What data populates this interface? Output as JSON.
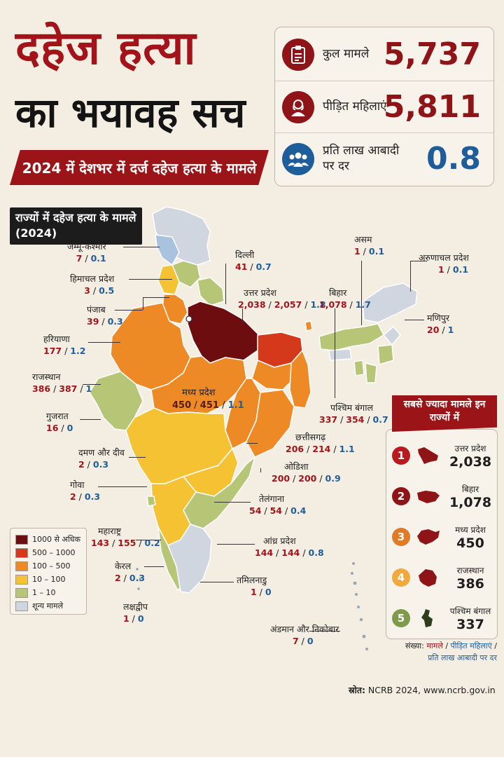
{
  "title_line1": "दहेज हत्या",
  "title_line2": "का भयावह सच",
  "banner": "2024 में देशभर में दर्ज दहेज हत्या के मामले",
  "stats": [
    {
      "label": "कुल मामले",
      "value": "5,737",
      "icon": "clipboard-icon",
      "color": "#8f1418"
    },
    {
      "label": "पीड़ित महिलाएं",
      "value": "5,811",
      "icon": "woman-icon",
      "color": "#8f1418"
    },
    {
      "label": "प्रति लाख आबादी पर दर",
      "value": "0.8",
      "icon": "people-icon",
      "color": "#1f5d9a"
    }
  ],
  "map_heading_line1": "राज्यों में दहेज हत्या के मामले",
  "map_heading_line2": "(2024)",
  "states": {
    "jk": {
      "name": "जम्मू-कश्मीर",
      "cases": "7",
      "rate": "0.1"
    },
    "hp": {
      "name": "हिमाचल प्रदेश",
      "cases": "3",
      "rate": "0.5"
    },
    "pb": {
      "name": "पंजाब",
      "cases": "39",
      "rate": "0.3"
    },
    "hr": {
      "name": "हरियाणा",
      "cases": "177",
      "rate": "1.2"
    },
    "rj": {
      "name": "राजस्थान",
      "cases": "386",
      "victims": "387",
      "rate": "1"
    },
    "gj": {
      "name": "गुजरात",
      "cases": "16",
      "rate": "0"
    },
    "dd": {
      "name": "दमण और दीव",
      "cases": "2",
      "rate": "0.3"
    },
    "ga": {
      "name": "गोवा",
      "cases": "2",
      "rate": "0.3"
    },
    "mh": {
      "name": "महाराष्ट्र",
      "cases": "143",
      "victims": "155",
      "rate": "0.2"
    },
    "kl": {
      "name": "केरल",
      "cases": "2",
      "rate": "0.3"
    },
    "ld": {
      "name": "लक्षद्वीप",
      "cases": "1",
      "rate": "0"
    },
    "dl": {
      "name": "दिल्ली",
      "cases": "41",
      "rate": "0.7"
    },
    "up": {
      "name": "उत्तर प्रदेश",
      "cases": "2,038",
      "victims": "2,057",
      "rate": "1.8"
    },
    "br": {
      "name": "बिहार",
      "cases": "1,078",
      "rate": "1.7"
    },
    "as": {
      "name": "असम",
      "cases": "1",
      "rate": "0.1"
    },
    "ar": {
      "name": "अरुणाचल प्रदेश",
      "cases": "1",
      "rate": "0.1"
    },
    "mn": {
      "name": "मणिपुर",
      "cases": "20",
      "rate": "1"
    },
    "wb": {
      "name": "पश्चिम बंगाल",
      "cases": "337",
      "victims": "354",
      "rate": "0.7"
    },
    "mp": {
      "name": "मध्य प्रदेश",
      "cases": "450",
      "victims": "451",
      "rate": "1.1"
    },
    "cg": {
      "name": "छत्तीसगढ़",
      "cases": "206",
      "victims": "214",
      "rate": "1.1"
    },
    "od": {
      "name": "ओडिशा",
      "cases": "200",
      "victims": "200",
      "rate": "0.9"
    },
    "tg": {
      "name": "तेलंगाना",
      "cases": "54",
      "victims": "54",
      "rate": "0.4"
    },
    "ap": {
      "name": "आंध्र प्रदेश",
      "cases": "144",
      "victims": "144",
      "rate": "0.8"
    },
    "tn": {
      "name": "तमिलनाडु",
      "cases": "1",
      "rate": "0"
    },
    "an": {
      "name": "अंडमान और निकोबार",
      "cases": "7",
      "rate": "0"
    }
  },
  "legend": [
    {
      "label": "1000 से अधिक",
      "color": "#6e0d10"
    },
    {
      "label": "500 – 1000",
      "color": "#d4391c"
    },
    {
      "label": "100 – 500",
      "color": "#ee8a26"
    },
    {
      "label": "10 – 100",
      "color": "#f5c233"
    },
    {
      "label": "1 – 10",
      "color": "#b7c676"
    },
    {
      "label": "शून्य मामले",
      "color": "#cfd6df"
    }
  ],
  "top_heading": "सबसे ज्यादा मामले इन राज्यों में",
  "top_states": [
    {
      "rank": "1",
      "name": "उत्तर प्रदेश",
      "value": "2,038",
      "color": "#b81a1f"
    },
    {
      "rank": "2",
      "name": "बिहार",
      "value": "1,078",
      "color": "#8f1418"
    },
    {
      "rank": "3",
      "name": "मध्य प्रदेश",
      "value": "450",
      "color": "#e07a26"
    },
    {
      "rank": "4",
      "name": "राजस्थान",
      "value": "386",
      "color": "#f0a93a"
    },
    {
      "rank": "5",
      "name": "पश्चिम बंगाल",
      "value": "337",
      "color": "#7f9a4a"
    }
  ],
  "note_prefix": "संख्या: ",
  "note_cases": "मामले",
  "note_victims": "पीड़ित महिलाएं",
  "note_rate": "प्रति लाख आबादी पर दर",
  "source_label": "स्रोत:",
  "source_text": "NCRB 2024, www.ncrb.gov.in"
}
